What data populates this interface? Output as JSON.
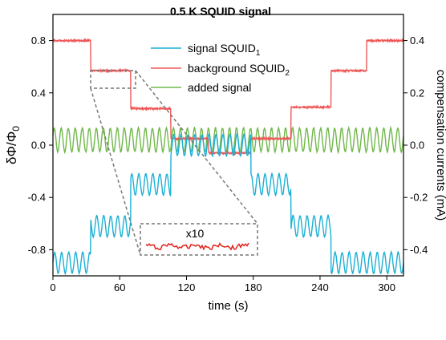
{
  "chart_data": {
    "type": "line",
    "title": "0.5 K SQUID signal",
    "xlabel": "time (s)",
    "ylabel": "δΦ/Φ",
    "ylabel_sub": "0",
    "y2label": "compensation currents (mA)",
    "xlim": [
      0,
      315
    ],
    "ylim": [
      -1.0,
      1.0
    ],
    "y2lim": [
      -0.5,
      0.5
    ],
    "xticks": [
      0,
      60,
      120,
      180,
      240,
      300
    ],
    "xtick_labels": [
      "0",
      "60",
      "120",
      "180",
      "240",
      "300"
    ],
    "yticks": [
      -0.8,
      -0.4,
      0.0,
      0.4,
      0.8
    ],
    "ytick_labels": [
      "-0.8",
      "-0.4",
      "0.0",
      "0.4",
      "0.8"
    ],
    "y2ticks": [
      -0.4,
      -0.2,
      0.0,
      0.2,
      0.4
    ],
    "y2tick_labels": [
      "-0.4",
      "-0.2",
      "0.0",
      "0.2",
      "0.4"
    ],
    "grid": false,
    "legend_position": "top-center",
    "series": [
      {
        "name": "signal SQUID",
        "name_sub": "1",
        "color": "#1bb0d4",
        "kind": "steps_with_oscillation",
        "steps": [
          [
            0,
            34,
            -0.9
          ],
          [
            34,
            70,
            -0.62
          ],
          [
            70,
            106,
            -0.3
          ],
          [
            106,
            178,
            0.0
          ],
          [
            178,
            214,
            -0.3
          ],
          [
            214,
            250,
            -0.62
          ],
          [
            250,
            282,
            -0.9
          ],
          [
            282,
            315,
            -0.9
          ]
        ],
        "osc_amplitude": 0.08,
        "osc_period_s": 6.3
      },
      {
        "name": "background SQUID",
        "name_sub": "2",
        "color": "#ef5858",
        "kind": "steps",
        "steps": [
          [
            0,
            34,
            0.8
          ],
          [
            34,
            70,
            0.57
          ],
          [
            70,
            106,
            0.28
          ],
          [
            106,
            140,
            0.05
          ],
          [
            140,
            178,
            -0.06
          ],
          [
            178,
            214,
            0.05
          ],
          [
            214,
            250,
            0.29
          ],
          [
            250,
            282,
            0.57
          ],
          [
            282,
            315,
            0.8
          ]
        ]
      },
      {
        "name": "added signal",
        "color": "#70b84a",
        "kind": "oscillation",
        "baseline": 0.04,
        "osc_amplitude": 0.09,
        "osc_period_s": 6.3
      }
    ],
    "inset": {
      "label": "x10",
      "color": "#e0241b",
      "zoom_region_x": [
        35,
        72
      ],
      "zoom_region_y": [
        0.53,
        0.6
      ]
    }
  }
}
